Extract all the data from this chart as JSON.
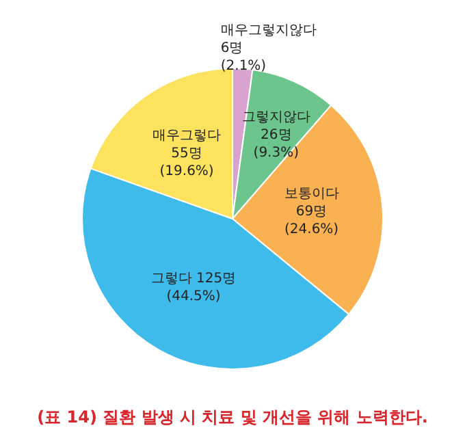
{
  "chart_data": {
    "type": "pie",
    "title": "(표 14) 질환 발생 시 치료 및 개선을 위해 노력한다.",
    "categories": [
      "매우그렇지않다",
      "그렇지않다",
      "보통이다",
      "그렇다",
      "매우그렇다"
    ],
    "values": [
      6,
      26,
      69,
      125,
      55
    ],
    "value_labels": [
      "6명\n(2.1%)",
      "26명\n(9.3%)",
      "69명\n(24.6%)",
      "125명\n(44.5%)",
      "55명\n(19.6%)"
    ],
    "colors": [
      "#d9a3cf",
      "#6cc58c",
      "#f9b152",
      "#3fbbeb",
      "#fde25e"
    ],
    "legend": false
  }
}
